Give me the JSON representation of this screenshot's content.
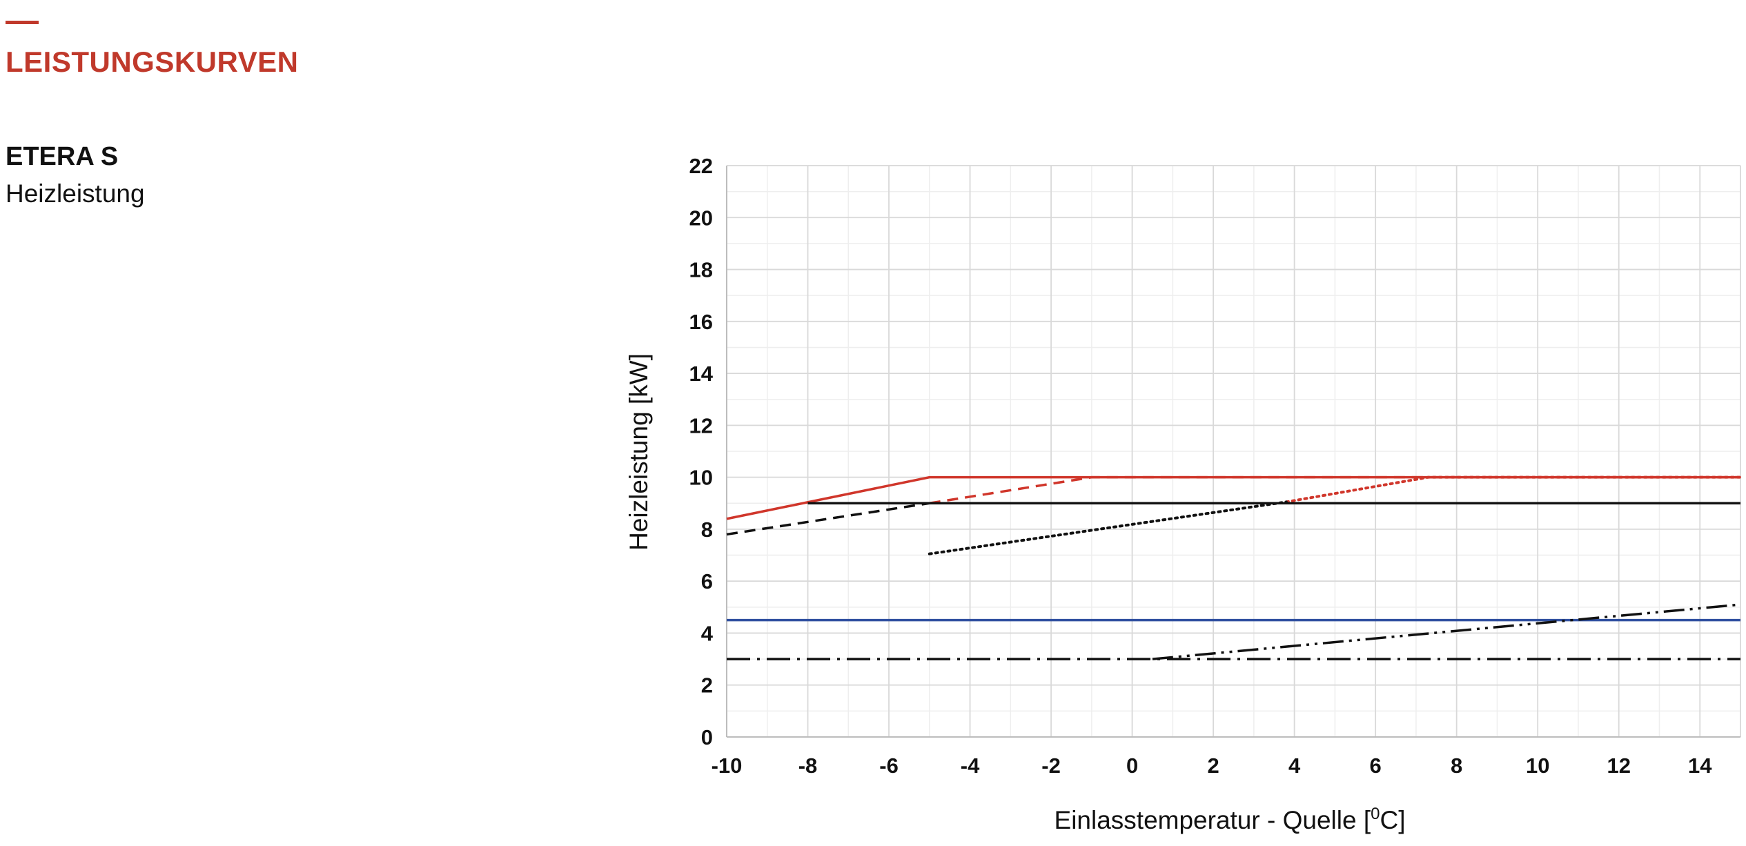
{
  "header": {
    "title": "LEISTUNGSKURVEN",
    "product": "ETERA S",
    "subtitle": "Heizleistung"
  },
  "colors": {
    "accent": "#c0392b",
    "red": "#d0362b",
    "blue": "#3050a0",
    "black": "#111111",
    "grid": "#d9d9d9",
    "grid_minor": "#eeeeee"
  },
  "chart_data": {
    "type": "line",
    "xlabel": "Einlasstemperatur - Quelle [",
    "xlabel_sup": "0",
    "xlabel_tail": "C]",
    "ylabel": "Heizleistung [kW]",
    "xlim": [
      -10,
      15
    ],
    "ylim": [
      0,
      22
    ],
    "xticks": [
      -10,
      -8,
      -6,
      -4,
      -2,
      0,
      2,
      4,
      6,
      8,
      10,
      12,
      14
    ],
    "yticks": [
      0,
      2,
      4,
      6,
      8,
      10,
      12,
      14,
      16,
      18,
      20,
      22
    ],
    "grid": true,
    "series": [
      {
        "style": "solid",
        "color": "#d0362b",
        "x": [
          -10,
          -5,
          15
        ],
        "y": [
          8.4,
          10,
          10
        ]
      },
      {
        "style": "dashed",
        "color": "#d0362b",
        "x": [
          -5,
          -1,
          15
        ],
        "y": [
          9,
          10,
          10
        ]
      },
      {
        "style": "dotted",
        "color": "#d0362b",
        "x": [
          3.8,
          7.3,
          15
        ],
        "y": [
          9.05,
          10,
          10
        ]
      },
      {
        "style": "solid",
        "color": "#111111",
        "x": [
          -8,
          15
        ],
        "y": [
          9,
          9
        ]
      },
      {
        "style": "dashed",
        "color": "#111111",
        "x": [
          -10,
          -5
        ],
        "y": [
          7.8,
          9
        ]
      },
      {
        "style": "dotted",
        "color": "#111111",
        "x": [
          -5,
          3.8
        ],
        "y": [
          7.05,
          9.05
        ]
      },
      {
        "style": "solid",
        "color": "#3050a0",
        "x": [
          -10,
          15
        ],
        "y": [
          4.5,
          4.5
        ]
      },
      {
        "style": "dashdot",
        "color": "#111111",
        "x": [
          -10,
          15
        ],
        "y": [
          3,
          3
        ]
      },
      {
        "style": "dashdotdot",
        "color": "#111111",
        "x": [
          0.5,
          15
        ],
        "y": [
          3,
          5.1
        ]
      }
    ]
  }
}
